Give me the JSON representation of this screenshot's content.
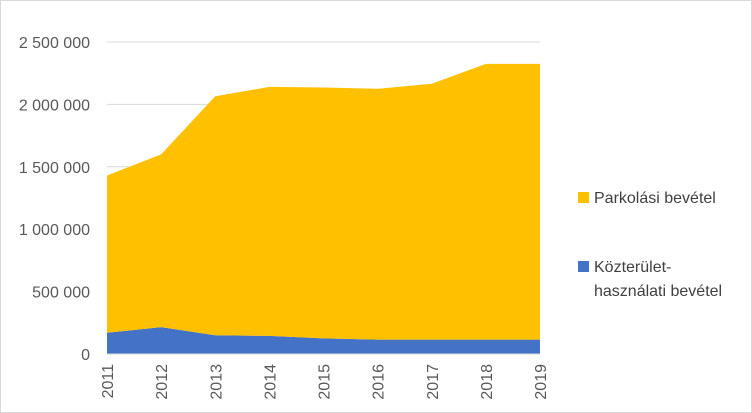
{
  "chart_data": {
    "type": "area",
    "stacked": true,
    "title": "",
    "xlabel": "",
    "ylabel": "",
    "x": [
      "2011",
      "2012",
      "2013",
      "2014",
      "2015",
      "2016",
      "2017",
      "2018",
      "2019"
    ],
    "ylim": [
      0,
      2500000
    ],
    "yticks": [
      0,
      500000,
      1000000,
      1500000,
      2000000,
      2500000
    ],
    "ytick_labels": [
      "0",
      "500 000",
      "1 000 000",
      "1 500 000",
      "2 000 000",
      "2 500 000"
    ],
    "grid": true,
    "legend_position": "right",
    "series": [
      {
        "name": "Közterület-használati bevétel",
        "legend_lines": [
          "Közterület-",
          "használati bevétel"
        ],
        "color": "#4472C4",
        "values": [
          170000,
          215000,
          150000,
          145000,
          125000,
          115000,
          115000,
          115000,
          115000
        ]
      },
      {
        "name": "Parkolási bevétel",
        "legend_lines": [
          "Parkolási bevétel"
        ],
        "color": "#FFC000",
        "values": [
          1260000,
          1385000,
          1915000,
          1995000,
          2010000,
          2010000,
          2050000,
          2210000,
          2210000
        ]
      }
    ]
  }
}
